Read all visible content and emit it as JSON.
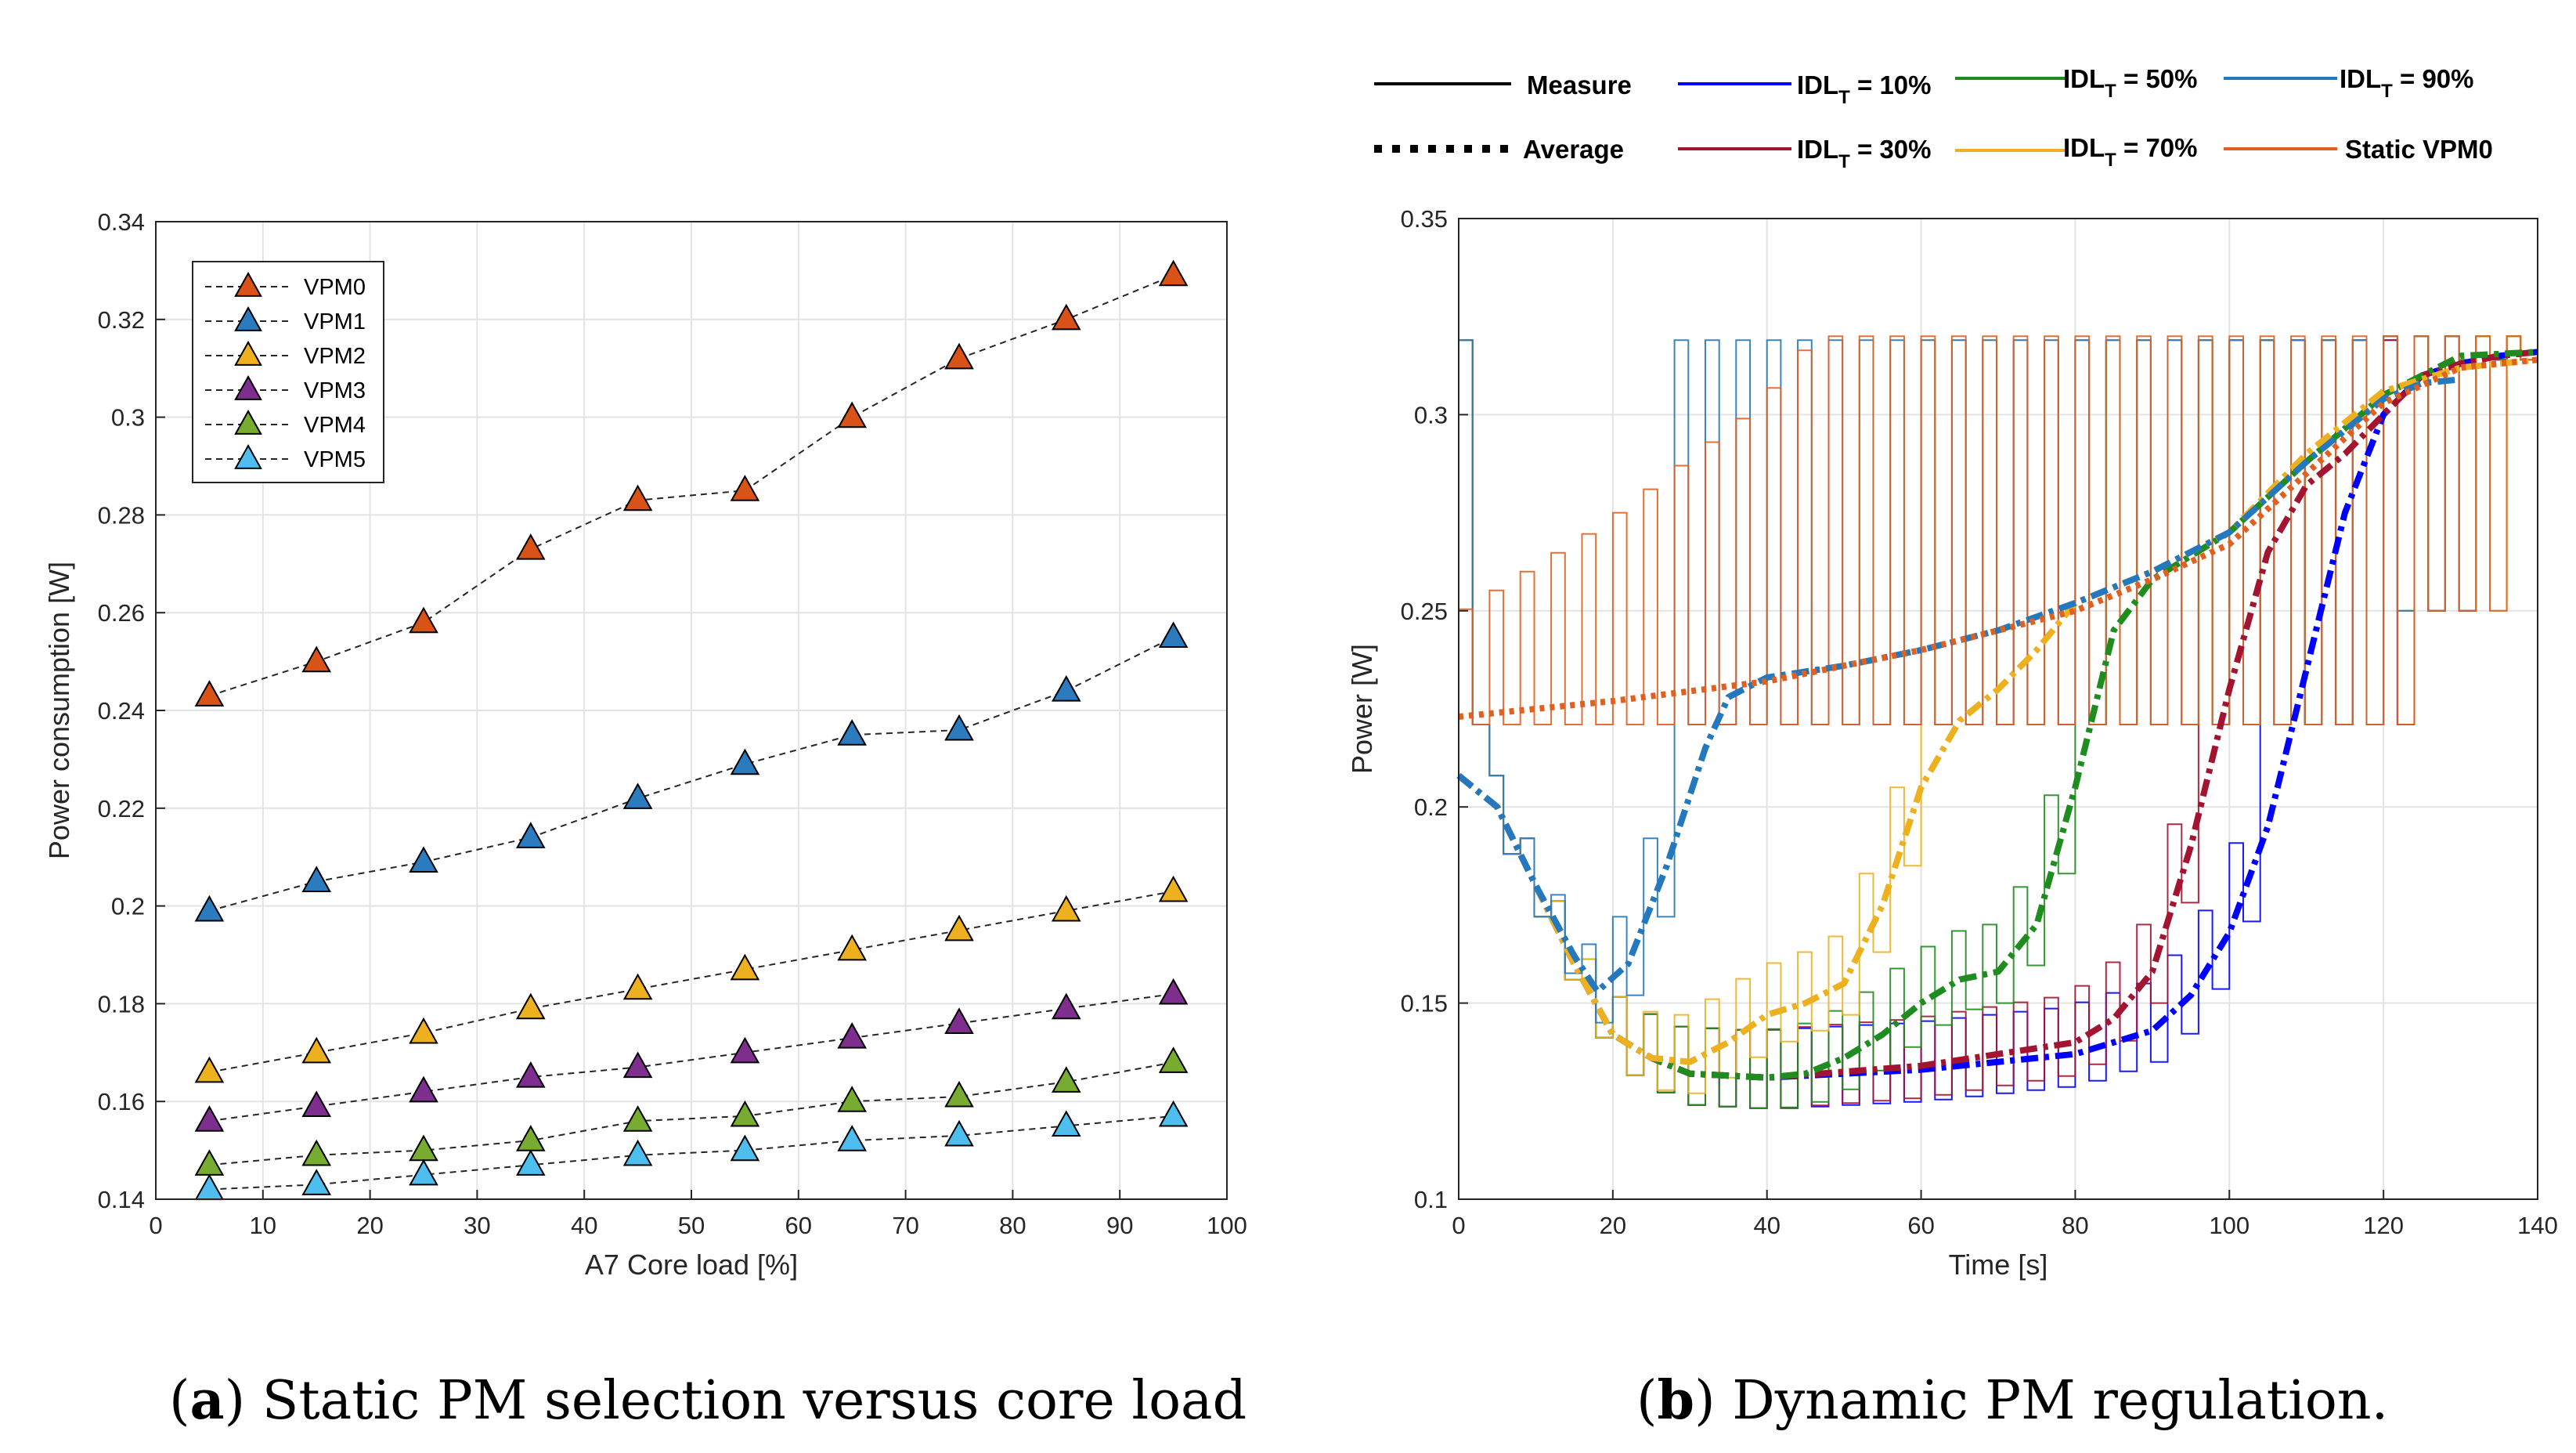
{
  "chart_data": [
    {
      "type": "line",
      "panel": "a",
      "xlabel": "A7 Core load [%]",
      "ylabel": "Power consumption [W]",
      "xlim": [
        0,
        100
      ],
      "ylim": [
        0.14,
        0.34
      ],
      "xticks": [
        "0",
        "10",
        "20",
        "30",
        "40",
        "50",
        "60",
        "70",
        "80",
        "90",
        "100"
      ],
      "yticks": [
        "0.14",
        "0.16",
        "0.18",
        "0.2",
        "0.22",
        "0.24",
        "0.26",
        "0.28",
        "0.3",
        "0.32",
        "0.34"
      ],
      "grid": true,
      "legend_position": "top-left",
      "x": [
        5,
        15,
        25,
        35,
        45,
        55,
        65,
        75,
        85,
        95
      ],
      "series": [
        {
          "name": "VPM0",
          "color": "#D95319",
          "values": [
            0.243,
            0.25,
            0.258,
            0.273,
            0.283,
            0.285,
            0.3,
            0.312,
            0.32,
            0.329
          ]
        },
        {
          "name": "VPM1",
          "color": "#2B7BBE",
          "values": [
            0.199,
            0.205,
            0.209,
            0.214,
            0.222,
            0.229,
            0.235,
            0.236,
            0.244,
            0.255
          ]
        },
        {
          "name": "VPM2",
          "color": "#EDB120",
          "values": [
            0.166,
            0.17,
            0.174,
            0.179,
            0.183,
            0.187,
            0.191,
            0.195,
            0.199,
            0.203
          ]
        },
        {
          "name": "VPM3",
          "color": "#7E2F8E",
          "values": [
            0.156,
            0.159,
            0.162,
            0.165,
            0.167,
            0.17,
            0.173,
            0.176,
            0.179,
            0.182
          ]
        },
        {
          "name": "VPM4",
          "color": "#77AC30",
          "values": [
            0.147,
            0.149,
            0.15,
            0.152,
            0.156,
            0.157,
            0.16,
            0.161,
            0.164,
            0.168
          ]
        },
        {
          "name": "VPM5",
          "color": "#4DBEEE",
          "values": [
            0.142,
            0.143,
            0.145,
            0.147,
            0.149,
            0.15,
            0.152,
            0.153,
            0.155,
            0.157
          ]
        }
      ]
    },
    {
      "type": "line",
      "panel": "b",
      "xlabel": "Time [s]",
      "ylabel": "Power [W]",
      "xlim": [
        0,
        140
      ],
      "ylim": [
        0.1,
        0.35
      ],
      "xticks": [
        "0",
        "20",
        "40",
        "60",
        "80",
        "100",
        "120",
        "140"
      ],
      "yticks": [
        "0.1",
        "0.15",
        "0.2",
        "0.25",
        "0.3",
        "0.35"
      ],
      "grid": true,
      "legend_position": "top-outside",
      "legend": {
        "measure": "Measure",
        "average": "Average",
        "idl10": {
          "pre": "IDL",
          "sub": "T",
          "post": " = 10%"
        },
        "idl30": {
          "pre": "IDL",
          "sub": "T",
          "post": " = 30%"
        },
        "idl50": {
          "pre": "IDL",
          "sub": "T",
          "post": " = 50%"
        },
        "idl70": {
          "pre": "IDL",
          "sub": "T",
          "post": " = 70%"
        },
        "idl90": {
          "pre": "IDL",
          "sub": "T",
          "post": " = 90%"
        },
        "static": "Static VPM0"
      },
      "series": [
        {
          "name": "IDL_T = 10%",
          "color": "#0000FF",
          "average": {
            "x": [
              0,
              5,
              10,
              15,
              20,
              25,
              30,
              40,
              60,
              80,
              90,
              95,
              100,
              105,
              110,
              115,
              120,
              125,
              130,
              135,
              140
            ],
            "y": [
              0.208,
              0.2,
              0.18,
              0.16,
              0.142,
              0.136,
              0.132,
              0.131,
              0.133,
              0.137,
              0.143,
              0.152,
              0.168,
              0.195,
              0.235,
              0.275,
              0.3,
              0.31,
              0.313,
              0.315,
              0.316
            ]
          }
        },
        {
          "name": "IDL_T = 30%",
          "color": "#A2142F",
          "average": {
            "x": [
              0,
              5,
              10,
              15,
              20,
              25,
              30,
              40,
              60,
              80,
              85,
              90,
              95,
              100,
              105,
              110,
              115,
              120,
              125,
              130,
              135,
              140
            ],
            "y": [
              0.208,
              0.2,
              0.18,
              0.16,
              0.142,
              0.136,
              0.132,
              0.131,
              0.134,
              0.14,
              0.146,
              0.158,
              0.19,
              0.23,
              0.265,
              0.282,
              0.29,
              0.3,
              0.31,
              0.313,
              0.315,
              0.316
            ]
          }
        },
        {
          "name": "IDL_T = 50%",
          "color": "#1E8C1E",
          "average": {
            "x": [
              0,
              5,
              10,
              15,
              20,
              25,
              30,
              40,
              45,
              50,
              55,
              60,
              65,
              70,
              75,
              80,
              85,
              90,
              95,
              100,
              110,
              120,
              130,
              140
            ],
            "y": [
              0.208,
              0.2,
              0.18,
              0.16,
              0.142,
              0.136,
              0.132,
              0.131,
              0.132,
              0.136,
              0.142,
              0.15,
              0.156,
              0.158,
              0.17,
              0.205,
              0.245,
              0.258,
              0.264,
              0.27,
              0.288,
              0.305,
              0.315,
              0.316
            ]
          }
        },
        {
          "name": "IDL_T = 70%",
          "color": "#EDB120",
          "average": {
            "x": [
              0,
              5,
              10,
              15,
              20,
              25,
              30,
              35,
              40,
              45,
              50,
              55,
              60,
              65,
              70,
              75,
              80,
              85,
              90,
              100,
              110,
              120,
              130,
              140
            ],
            "y": [
              0.208,
              0.2,
              0.18,
              0.16,
              0.142,
              0.136,
              0.135,
              0.14,
              0.147,
              0.15,
              0.155,
              0.175,
              0.205,
              0.222,
              0.23,
              0.24,
              0.252,
              0.256,
              0.26,
              0.27,
              0.29,
              0.306,
              0.312,
              0.314
            ]
          }
        },
        {
          "name": "IDL_T = 90%",
          "color": "#2478BE",
          "average": {
            "x": [
              0,
              5,
              10,
              15,
              18,
              22,
              27,
              32,
              35,
              40,
              50,
              60,
              70,
              80,
              90,
              100,
              110,
              120,
              125,
              130
            ],
            "y": [
              0.208,
              0.2,
              0.18,
              0.162,
              0.153,
              0.16,
              0.185,
              0.215,
              0.228,
              0.233,
              0.236,
              0.24,
              0.245,
              0.252,
              0.26,
              0.27,
              0.288,
              0.304,
              0.308,
              0.309
            ]
          }
        },
        {
          "name": "Static VPM0",
          "color": "#E06020",
          "average": {
            "x": [
              0,
              20,
              40,
              60,
              80,
              90,
              100,
              110,
              120,
              130,
              140
            ],
            "y": [
              0.223,
              0.227,
              0.232,
              0.24,
              0.25,
              0.258,
              0.267,
              0.285,
              0.303,
              0.312,
              0.314
            ]
          }
        }
      ]
    }
  ],
  "captions": {
    "a": {
      "label": "a",
      "text": ") Static PM selection versus core load",
      "open": "("
    },
    "b": {
      "label": "b",
      "text": ") Dynamic PM regulation.",
      "open": "("
    }
  }
}
